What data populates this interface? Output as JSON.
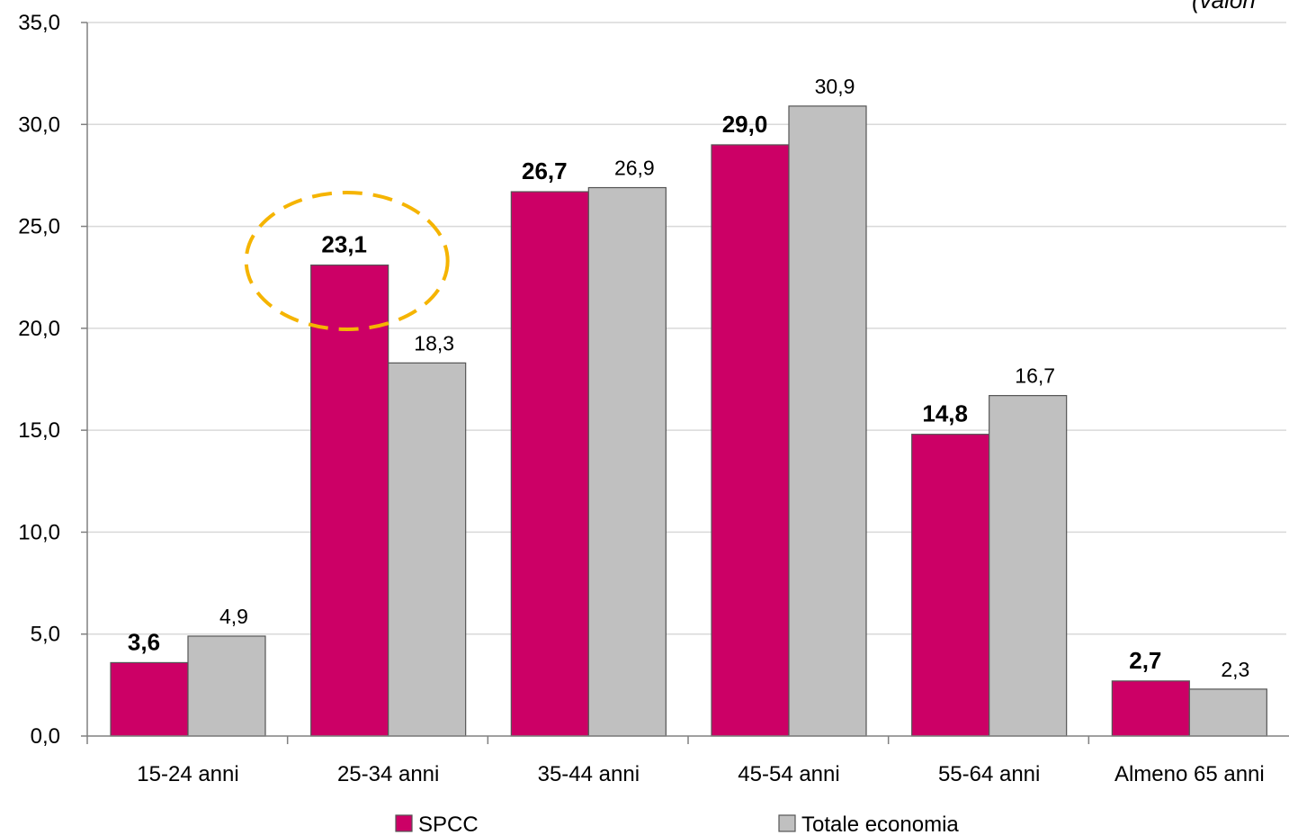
{
  "chart_data": {
    "type": "bar",
    "title": "",
    "note": "(valori",
    "xlabel": "",
    "ylabel": "",
    "ylim": [
      0,
      35
    ],
    "ytick_step": 5,
    "grid": true,
    "legend_position": "bottom",
    "categories": [
      "15-24 anni",
      "25-34 anni",
      "35-44 anni",
      "45-54 anni",
      "55-64 anni",
      "Almeno 65 anni"
    ],
    "series": [
      {
        "name": "SPCC",
        "color": "#cc0066",
        "label_style": "bold",
        "values": [
          3.6,
          23.1,
          26.7,
          29.0,
          14.8,
          2.7
        ]
      },
      {
        "name": "Totale economia",
        "color": "#c0c0c0",
        "label_style": "normal",
        "values": [
          4.9,
          18.3,
          26.9,
          30.9,
          16.7,
          2.3
        ]
      }
    ],
    "highlight": {
      "category_index": 1,
      "shape": "dashed-ellipse",
      "color": "#f5b400"
    }
  }
}
